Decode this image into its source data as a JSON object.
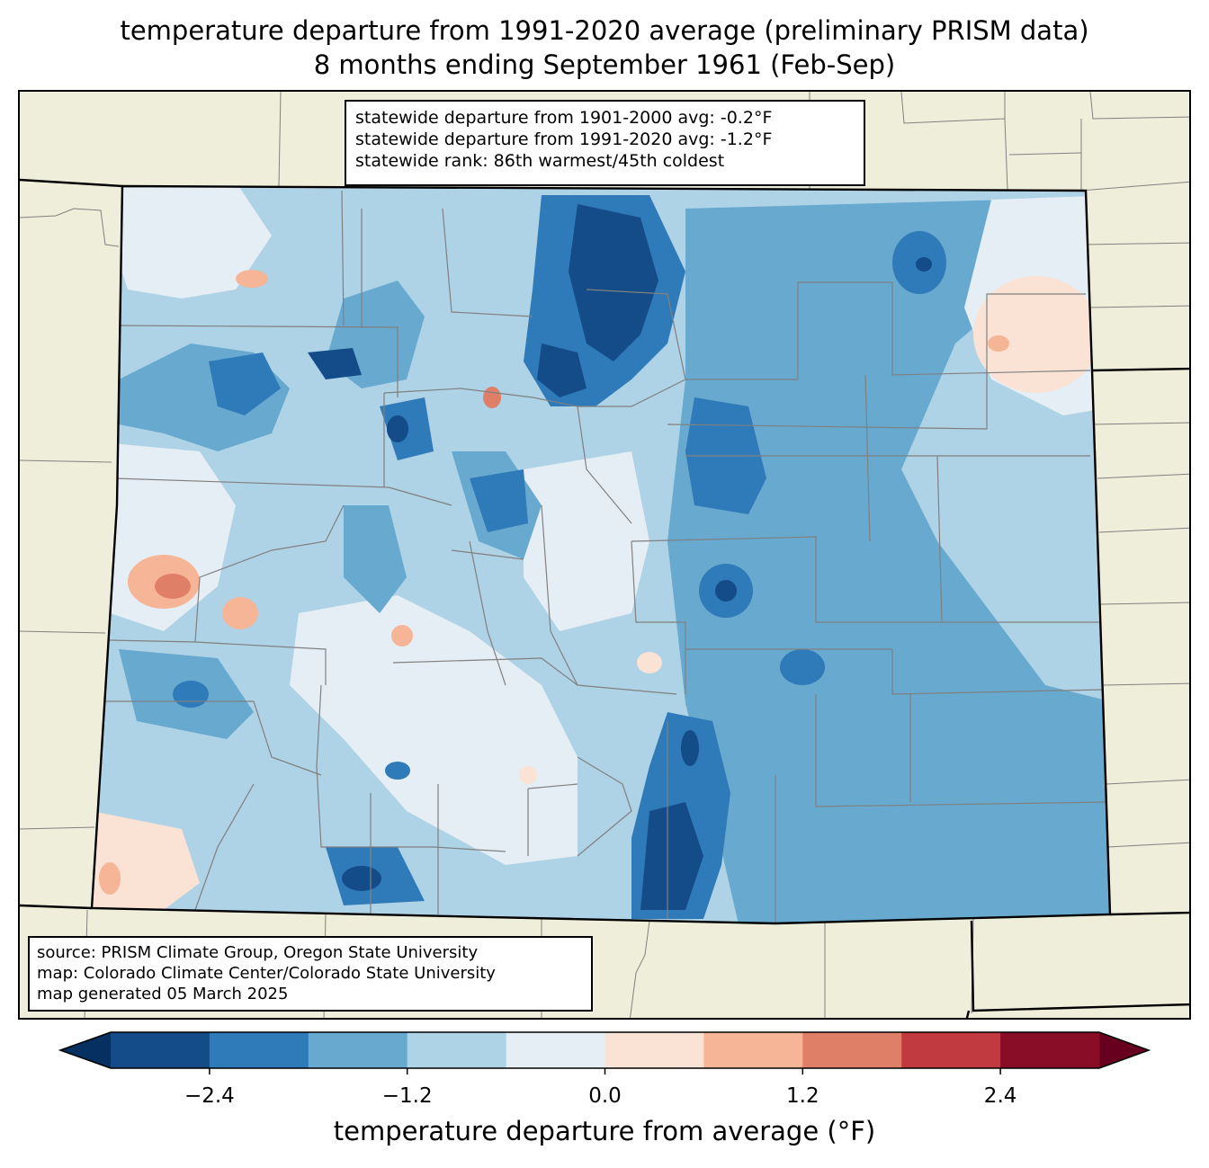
{
  "title_line1": "temperature departure from 1991-2020 average (preliminary PRISM data)",
  "title_line2": "8 months ending September 1961 (Feb-Sep)",
  "stats": {
    "line1": "statewide departure from 1901-2000 avg: -0.2°F",
    "line2": "statewide departure from 1991-2020 avg: -1.2°F",
    "line3": "statewide rank: 86th warmest/45th coldest"
  },
  "credits": {
    "line1": "source: PRISM Climate Group, Oregon State University",
    "line2": "map: Colorado Climate Center/Colorado State University",
    "line3": "map generated 05 March 2025"
  },
  "colorbar": {
    "label": "temperature departure from average (°F)",
    "ticks": [
      {
        "value": -2.4,
        "label": "−2.4"
      },
      {
        "value": -1.2,
        "label": "−1.2"
      },
      {
        "value": 0.0,
        "label": "0.0"
      },
      {
        "value": 1.2,
        "label": "1.2"
      },
      {
        "value": 2.4,
        "label": "2.4"
      }
    ],
    "min": -3.0,
    "max": 3.0,
    "step": 0.6,
    "colors": {
      "under": "#053061",
      "bins": [
        "#134c88",
        "#2f7ab8",
        "#67a9cf",
        "#aed2e6",
        "#e5eef4",
        "#fae2d4",
        "#f6b597",
        "#e07f68",
        "#c13a3f",
        "#8a0d27"
      ],
      "over": "#67001f"
    }
  },
  "map_colors": {
    "land": "#efeedb",
    "state_border": "#000000",
    "county_border": "#808080"
  }
}
